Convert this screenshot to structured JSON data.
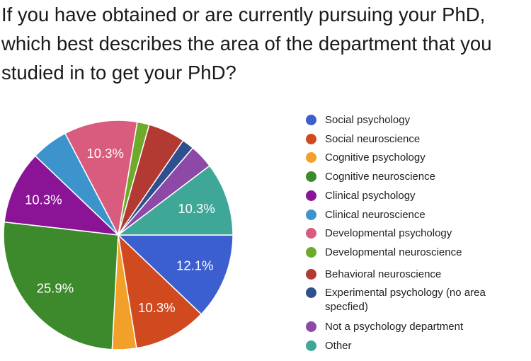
{
  "title": "If you have obtained or are currently pursuing your PhD, which best describes the area of the department that you studied in to get your PhD?",
  "chart_data": {
    "type": "pie",
    "title": "If you have obtained or are currently pursuing your PhD, which best describes the area of the department that you studied in to get your PhD?",
    "legend_position": "right",
    "slices": [
      {
        "name": "Social psychology",
        "value": 12.1,
        "label": "12.1%",
        "color": "#3c5fcf"
      },
      {
        "name": "Social neuroscience",
        "value": 10.3,
        "label": "10.3%",
        "color": "#d14a1f"
      },
      {
        "name": "Cognitive psychology",
        "value": 3.4,
        "label": "",
        "color": "#f3a02a"
      },
      {
        "name": "Cognitive neuroscience",
        "value": 25.9,
        "label": "25.9%",
        "color": "#3d8a2c"
      },
      {
        "name": "Clinical psychology",
        "value": 10.3,
        "label": "10.3%",
        "color": "#8b1496"
      },
      {
        "name": "Clinical neuroscience",
        "value": 5.2,
        "label": "",
        "color": "#3d94cc"
      },
      {
        "name": "Developmental psychology",
        "value": 10.3,
        "label": "10.3%",
        "color": "#d95b7e"
      },
      {
        "name": "Developmental neuroscience",
        "value": 1.7,
        "label": "",
        "color": "#6fab2a"
      },
      {
        "name": "Behavioral neuroscience",
        "value": 5.2,
        "label": "",
        "color": "#b33a33"
      },
      {
        "name": "Experimental psychology (no area specfied)",
        "value": 1.7,
        "label": "",
        "color": "#2f4f8f"
      },
      {
        "name": "Not a psychology department",
        "value": 3.4,
        "label": "",
        "color": "#8c4aa6"
      },
      {
        "name": "Other",
        "value": 10.3,
        "label": "10.3%",
        "color": "#3fa797"
      }
    ]
  }
}
